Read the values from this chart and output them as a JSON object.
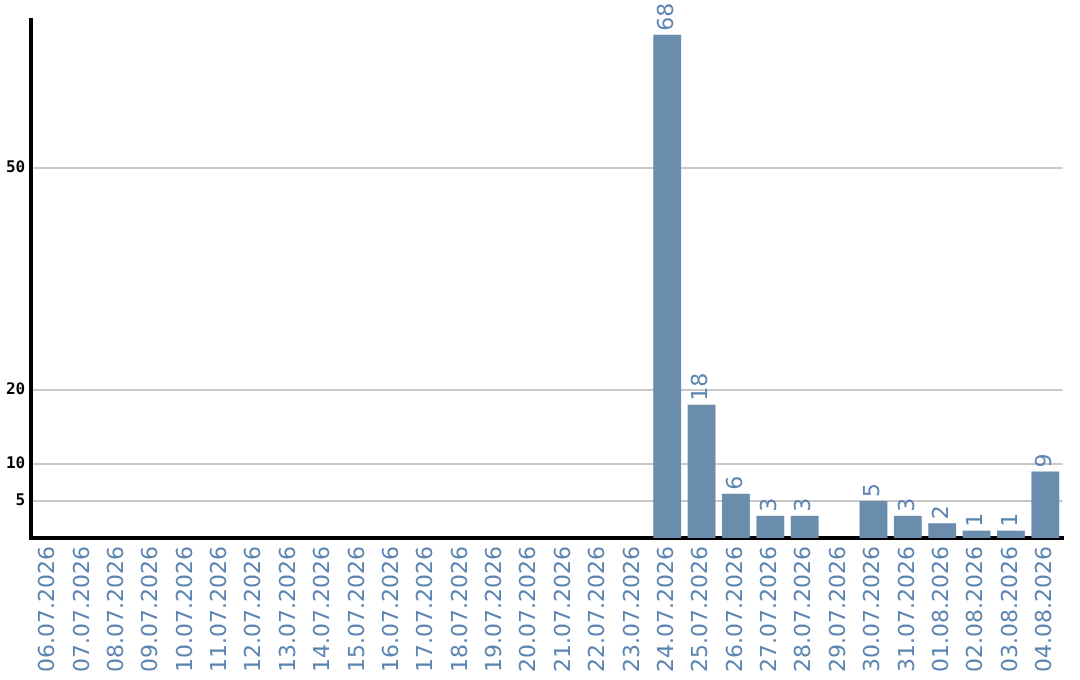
{
  "chart_data": {
    "type": "bar",
    "categories": [
      "06.07.2026",
      "07.07.2026",
      "08.07.2026",
      "09.07.2026",
      "10.07.2026",
      "11.07.2026",
      "12.07.2026",
      "13.07.2026",
      "14.07.2026",
      "15.07.2026",
      "16.07.2026",
      "17.07.2026",
      "18.07.2026",
      "19.07.2026",
      "20.07.2026",
      "21.07.2026",
      "22.07.2026",
      "23.07.2026",
      "24.07.2026",
      "25.07.2026",
      "26.07.2026",
      "27.07.2026",
      "28.07.2026",
      "29.07.2026",
      "30.07.2026",
      "31.07.2026",
      "01.08.2026",
      "02.08.2026",
      "03.08.2026",
      "04.08.2026"
    ],
    "values": [
      0,
      0,
      0,
      0,
      0,
      0,
      0,
      0,
      0,
      0,
      0,
      0,
      0,
      0,
      0,
      0,
      0,
      0,
      68,
      18,
      6,
      3,
      3,
      0,
      5,
      3,
      2,
      1,
      1,
      9
    ],
    "value_labels": [
      null,
      null,
      null,
      null,
      null,
      null,
      null,
      null,
      null,
      null,
      null,
      null,
      null,
      null,
      null,
      null,
      null,
      null,
      "68",
      "18",
      "6",
      "3",
      "3",
      null,
      "5",
      "3",
      "2",
      "1",
      "1",
      "9"
    ],
    "color": "#6a8cad",
    "ylim": [
      0,
      70
    ],
    "yticks": [
      5,
      10,
      20,
      50
    ],
    "grid": "y",
    "legend": false
  }
}
